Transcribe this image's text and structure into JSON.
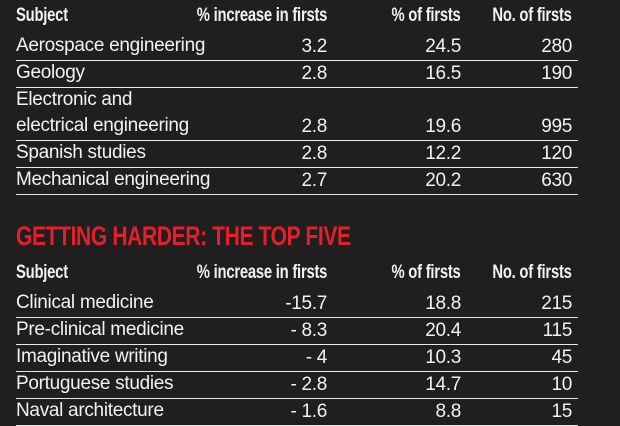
{
  "columns": [
    "Subject",
    "% increase in firsts",
    "% of firsts",
    "No. of firsts"
  ],
  "easier_rows": [
    {
      "subject": "Aerospace engineering",
      "increase": "3.2",
      "pct": "24.5",
      "num": "280"
    },
    {
      "subject": "Geology",
      "increase": "2.8",
      "pct": "16.5",
      "num": "190"
    },
    {
      "subject_line1": "Electronic and",
      "subject_line2": "electrical engineering",
      "increase": "2.8",
      "pct": "19.6",
      "num": "995"
    },
    {
      "subject": "Spanish studies",
      "increase": "2.8",
      "pct": "12.2",
      "num": "120"
    },
    {
      "subject": "Mechanical engineering",
      "increase": "2.7",
      "pct": "20.2",
      "num": "630"
    }
  ],
  "harder_title": "GETTING HARDER: THE TOP FIVE",
  "harder_rows": [
    {
      "subject": "Clinical medicine",
      "increase": "-15.7",
      "pct": "18.8",
      "num": "215"
    },
    {
      "subject": "Pre-clinical medicine",
      "increase": "- 8.3",
      "pct": "20.4",
      "num": "115"
    },
    {
      "subject": "Imaginative writing",
      "increase": "- 4",
      "pct": "10.3",
      "num": "45"
    },
    {
      "subject": "Portuguese studies",
      "increase": "- 2.8",
      "pct": "14.7",
      "num": "10"
    },
    {
      "subject": "Naval architecture",
      "increase": "- 1.6",
      "pct": "8.8",
      "num": "15"
    }
  ],
  "colors": {
    "background": "#211e1f",
    "title": "#e3202a",
    "text": "#f2f2f2"
  }
}
